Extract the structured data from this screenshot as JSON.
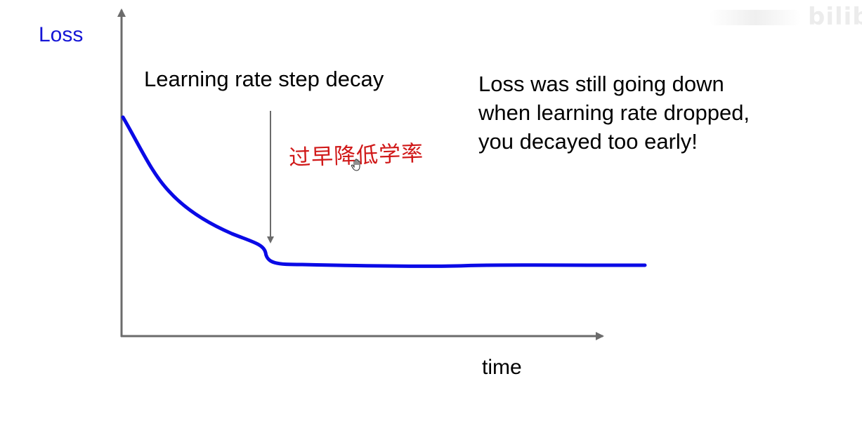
{
  "diagram": {
    "title": "",
    "y_axis_label": "Loss",
    "x_axis_label": "time",
    "arrow_label": "Learning rate step decay",
    "note_lines": [
      "Loss was still going down",
      "when learning rate dropped,",
      "you decayed too early!"
    ],
    "handwritten_annotation": "过早降低学率",
    "watermark": "bilib"
  },
  "colors": {
    "curve": "#0a0ae6",
    "axis": "#6b6b6b",
    "y_label": "#1515d6",
    "annotation": "#d01818"
  },
  "icons": {
    "cursor": "hand-cursor-icon"
  }
}
